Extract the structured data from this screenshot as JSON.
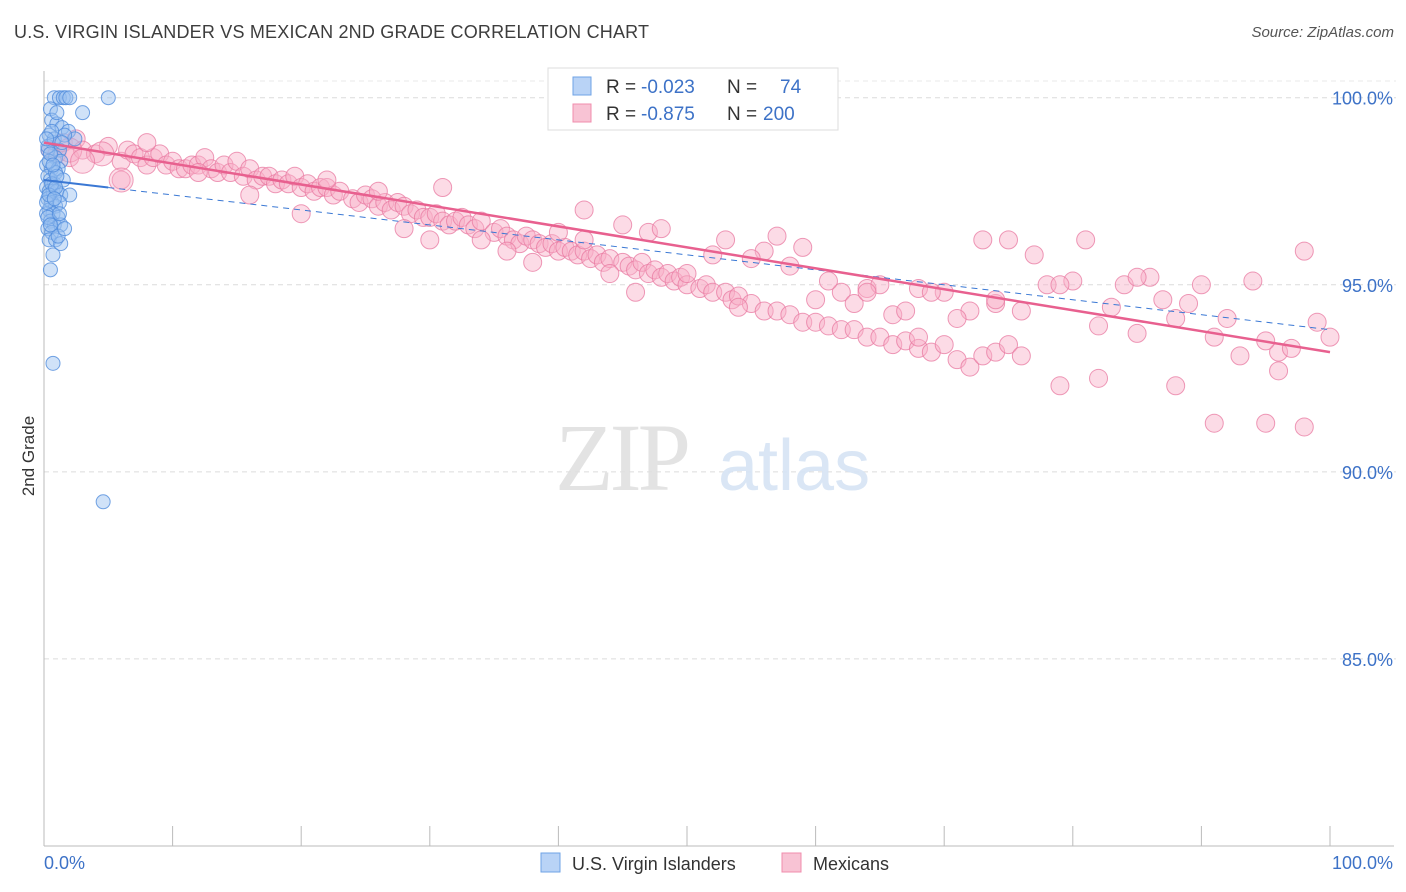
{
  "header": {
    "title": "U.S. VIRGIN ISLANDER VS MEXICAN 2ND GRADE CORRELATION CHART",
    "source": "Source: ZipAtlas.com"
  },
  "watermark": {
    "zip": "ZIP",
    "atlas": "atlas"
  },
  "colors": {
    "blue": "#6fa3e6",
    "blue_line": "#3a78d4",
    "pink": "#f08cad",
    "pink_line": "#e8608f",
    "axis_text": "#3d72c7"
  },
  "legend_box": {
    "rows": [
      {
        "r_label": "R = ",
        "r_value": "-0.023",
        "n_label": "N = ",
        "n_value": "74"
      },
      {
        "r_label": "R = ",
        "r_value": "-0.875",
        "n_label": "N = ",
        "n_value": "200"
      }
    ]
  },
  "chart_data": {
    "type": "scatter",
    "title": "U.S. VIRGIN ISLANDER VS MEXICAN 2ND GRADE CORRELATION CHART",
    "xlabel": "",
    "ylabel": "2nd Grade",
    "xlim": [
      0,
      100
    ],
    "ylim": [
      80,
      100.5
    ],
    "x_tick_labels": [
      "0.0%",
      "100.0%"
    ],
    "y_ticks": [
      85,
      90,
      95,
      100
    ],
    "y_tick_labels": [
      "85.0%",
      "90.0%",
      "95.0%",
      "100.0%"
    ],
    "grid": true,
    "legend_placement": "bottom-center",
    "series": [
      {
        "name": "U.S. Virgin Islanders",
        "color": "#6fa3e6",
        "r": -0.023,
        "n": 74,
        "trend": {
          "x": [
            0,
            5
          ],
          "y": [
            97.8,
            97.6
          ]
        },
        "trend_extended": {
          "x": [
            5,
            100
          ],
          "y": [
            97.6,
            93.8
          ]
        },
        "points": [
          [
            0.8,
            100
          ],
          [
            1.2,
            100
          ],
          [
            1.5,
            100
          ],
          [
            1.7,
            100
          ],
          [
            2,
            100
          ],
          [
            5,
            100
          ],
          [
            3,
            99.6
          ],
          [
            0.5,
            99.7
          ],
          [
            0.6,
            99.4
          ],
          [
            1,
            99.3
          ],
          [
            1.4,
            99.2
          ],
          [
            1.9,
            99.1
          ],
          [
            2.4,
            98.9
          ],
          [
            0.4,
            99
          ],
          [
            0.7,
            98.8
          ],
          [
            1.2,
            98.6
          ],
          [
            0.3,
            98.6
          ],
          [
            0.9,
            98.4
          ],
          [
            1.3,
            98.3
          ],
          [
            0.2,
            98.2
          ],
          [
            0.6,
            98.1
          ],
          [
            1.1,
            98.1
          ],
          [
            0.3,
            97.9
          ],
          [
            0.5,
            97.8
          ],
          [
            0.8,
            97.7
          ],
          [
            0.2,
            97.6
          ],
          [
            0.4,
            97.5
          ],
          [
            0.7,
            97.5
          ],
          [
            1,
            97.5
          ],
          [
            1.3,
            97.4
          ],
          [
            2,
            97.4
          ],
          [
            0.3,
            97.3
          ],
          [
            0.6,
            97.2
          ],
          [
            0.9,
            97.1
          ],
          [
            1.2,
            97.2
          ],
          [
            0.4,
            97
          ],
          [
            0.7,
            96.9
          ],
          [
            1.1,
            96.8
          ],
          [
            0.2,
            96.9
          ],
          [
            0.5,
            96.7
          ],
          [
            0.8,
            96.6
          ],
          [
            1.3,
            96.6
          ],
          [
            0.3,
            96.5
          ],
          [
            0.6,
            96.4
          ],
          [
            0.4,
            96.2
          ],
          [
            0.9,
            96.2
          ],
          [
            1.3,
            96.1
          ],
          [
            0.7,
            95.8
          ],
          [
            0.5,
            95.4
          ],
          [
            0.7,
            92.9
          ],
          [
            4.6,
            89.2
          ],
          [
            0.3,
            98.7
          ],
          [
            0.9,
            98
          ],
          [
            0.4,
            98.3
          ],
          [
            0.6,
            97.7
          ],
          [
            1.5,
            97.8
          ],
          [
            0.2,
            97.2
          ],
          [
            1.1,
            96.3
          ],
          [
            0.8,
            98.9
          ],
          [
            1.6,
            99
          ],
          [
            0.5,
            98.5
          ],
          [
            1,
            97.9
          ],
          [
            0.3,
            96.8
          ],
          [
            0.6,
            99.1
          ],
          [
            1.4,
            98.8
          ],
          [
            0.4,
            97.4
          ],
          [
            0.9,
            97.6
          ],
          [
            1.2,
            96.9
          ],
          [
            0.7,
            98.2
          ],
          [
            0.5,
            96.6
          ],
          [
            0.8,
            97.3
          ],
          [
            1.6,
            96.5
          ],
          [
            0.2,
            98.9
          ],
          [
            1,
            99.6
          ]
        ]
      },
      {
        "name": "Mexicans",
        "color": "#f08cad",
        "r": -0.875,
        "n": 200,
        "trend": {
          "x": [
            0,
            100
          ],
          "y": [
            98.8,
            93.2
          ]
        },
        "points": [
          [
            0.5,
            98.6
          ],
          [
            1,
            98.5
          ],
          [
            1.5,
            98.8
          ],
          [
            2,
            98.4
          ],
          [
            2.5,
            98.9
          ],
          [
            3,
            98.6
          ],
          [
            4,
            98.5
          ],
          [
            5,
            98.7
          ],
          [
            6,
            98.3
          ],
          [
            6.5,
            98.6
          ],
          [
            7,
            98.5
          ],
          [
            7.5,
            98.4
          ],
          [
            8,
            98.2
          ],
          [
            8.5,
            98.4
          ],
          [
            9,
            98.5
          ],
          [
            9.5,
            98.2
          ],
          [
            10,
            98.3
          ],
          [
            10.5,
            98.1
          ],
          [
            11,
            98.1
          ],
          [
            11.5,
            98.2
          ],
          [
            12,
            98.2
          ],
          [
            12.5,
            98.4
          ],
          [
            13,
            98.1
          ],
          [
            13.5,
            98
          ],
          [
            14,
            98.2
          ],
          [
            14.5,
            98
          ],
          [
            15,
            98.3
          ],
          [
            15.5,
            97.9
          ],
          [
            16,
            98.1
          ],
          [
            16.5,
            97.8
          ],
          [
            17,
            97.9
          ],
          [
            17.5,
            97.9
          ],
          [
            18,
            97.7
          ],
          [
            18.5,
            97.8
          ],
          [
            19,
            97.7
          ],
          [
            19.5,
            97.9
          ],
          [
            20,
            97.6
          ],
          [
            20.5,
            97.7
          ],
          [
            21,
            97.5
          ],
          [
            21.5,
            97.6
          ],
          [
            22,
            97.6
          ],
          [
            22.5,
            97.4
          ],
          [
            23,
            97.5
          ],
          [
            24,
            97.3
          ],
          [
            24.5,
            97.2
          ],
          [
            25,
            97.4
          ],
          [
            25.5,
            97.3
          ],
          [
            26,
            97.1
          ],
          [
            26.5,
            97.2
          ],
          [
            27,
            97
          ],
          [
            27.5,
            97.2
          ],
          [
            28,
            97.1
          ],
          [
            28.5,
            96.9
          ],
          [
            29,
            97
          ],
          [
            29.5,
            96.8
          ],
          [
            30,
            96.8
          ],
          [
            30.5,
            96.9
          ],
          [
            31,
            96.7
          ],
          [
            31.5,
            96.6
          ],
          [
            32,
            96.7
          ],
          [
            32.5,
            96.8
          ],
          [
            33,
            96.6
          ],
          [
            33.5,
            96.5
          ],
          [
            34,
            96.7
          ],
          [
            35,
            96.4
          ],
          [
            35.5,
            96.5
          ],
          [
            36,
            96.3
          ],
          [
            36.5,
            96.2
          ],
          [
            37,
            96.1
          ],
          [
            37.5,
            96.3
          ],
          [
            38,
            96.2
          ],
          [
            38.5,
            96.1
          ],
          [
            39,
            96
          ],
          [
            39.5,
            96.1
          ],
          [
            40,
            95.9
          ],
          [
            40.5,
            96
          ],
          [
            41,
            95.9
          ],
          [
            41.5,
            95.8
          ],
          [
            42,
            95.9
          ],
          [
            42.5,
            95.7
          ],
          [
            43,
            95.8
          ],
          [
            43.5,
            95.6
          ],
          [
            44,
            95.7
          ],
          [
            45,
            95.6
          ],
          [
            45.5,
            95.5
          ],
          [
            46,
            95.4
          ],
          [
            46.5,
            95.6
          ],
          [
            47,
            95.3
          ],
          [
            47.5,
            95.4
          ],
          [
            48,
            95.2
          ],
          [
            48.5,
            95.3
          ],
          [
            49,
            95.1
          ],
          [
            49.5,
            95.2
          ],
          [
            50,
            95
          ],
          [
            51,
            94.9
          ],
          [
            51.5,
            95
          ],
          [
            52,
            94.8
          ],
          [
            53,
            94.8
          ],
          [
            53.5,
            94.6
          ],
          [
            54,
            94.7
          ],
          [
            55,
            94.5
          ],
          [
            56,
            94.3
          ],
          [
            57,
            94.3
          ],
          [
            58,
            94.2
          ],
          [
            59,
            94
          ],
          [
            60,
            94
          ],
          [
            61,
            93.9
          ],
          [
            62,
            93.8
          ],
          [
            63,
            93.8
          ],
          [
            64,
            93.6
          ],
          [
            65,
            93.6
          ],
          [
            66,
            93.4
          ],
          [
            67,
            93.5
          ],
          [
            68,
            93.3
          ],
          [
            69,
            93.2
          ],
          [
            70,
            93.4
          ],
          [
            71,
            93
          ],
          [
            72,
            92.8
          ],
          [
            73,
            93.1
          ],
          [
            74,
            93.2
          ],
          [
            6,
            97.8
          ],
          [
            8,
            98.8
          ],
          [
            12,
            98
          ],
          [
            16,
            97.4
          ],
          [
            20,
            96.9
          ],
          [
            22,
            97.8
          ],
          [
            26,
            97.5
          ],
          [
            28,
            96.5
          ],
          [
            30,
            96.2
          ],
          [
            31,
            97.6
          ],
          [
            34,
            96.2
          ],
          [
            36,
            95.9
          ],
          [
            38,
            95.6
          ],
          [
            40,
            96.4
          ],
          [
            42,
            96.2
          ],
          [
            44,
            95.3
          ],
          [
            46,
            94.8
          ],
          [
            47,
            96.4
          ],
          [
            50,
            95.3
          ],
          [
            52,
            95.8
          ],
          [
            54,
            94.4
          ],
          [
            56,
            95.9
          ],
          [
            58,
            95.5
          ],
          [
            60,
            94.6
          ],
          [
            62,
            94.8
          ],
          [
            64,
            94.9
          ],
          [
            66,
            94.2
          ],
          [
            68,
            94.9
          ],
          [
            70,
            94.8
          ],
          [
            72,
            94.3
          ],
          [
            74,
            94.5
          ],
          [
            76,
            94.3
          ],
          [
            78,
            95
          ],
          [
            80,
            95.1
          ],
          [
            82,
            93.9
          ],
          [
            84,
            95
          ],
          [
            86,
            95.2
          ],
          [
            88,
            94.1
          ],
          [
            90,
            95
          ],
          [
            92,
            94.1
          ],
          [
            94,
            95.1
          ],
          [
            96,
            93.2
          ],
          [
            98,
            95.9
          ],
          [
            99,
            94
          ],
          [
            100,
            93.6
          ],
          [
            61,
            95.1
          ],
          [
            63,
            94.5
          ],
          [
            65,
            95
          ],
          [
            67,
            94.3
          ],
          [
            69,
            94.8
          ],
          [
            71,
            94.1
          ],
          [
            73,
            96.2
          ],
          [
            75,
            96.2
          ],
          [
            77,
            95.8
          ],
          [
            79,
            95
          ],
          [
            81,
            96.2
          ],
          [
            83,
            94.4
          ],
          [
            85,
            95.2
          ],
          [
            87,
            94.6
          ],
          [
            89,
            94.5
          ],
          [
            91,
            93.6
          ],
          [
            93,
            93.1
          ],
          [
            95,
            93.5
          ],
          [
            97,
            93.3
          ],
          [
            42,
            97
          ],
          [
            45,
            96.6
          ],
          [
            48,
            96.5
          ],
          [
            53,
            96.2
          ],
          [
            55,
            95.7
          ],
          [
            57,
            96.3
          ],
          [
            59,
            96
          ],
          [
            64,
            94.8
          ],
          [
            68,
            93.6
          ],
          [
            75,
            93.4
          ],
          [
            79,
            92.3
          ],
          [
            82,
            92.5
          ],
          [
            85,
            93.7
          ],
          [
            88,
            92.3
          ],
          [
            91,
            91.3
          ],
          [
            95,
            91.3
          ],
          [
            98,
            91.2
          ],
          [
            96,
            92.7
          ],
          [
            74,
            94.6
          ],
          [
            76,
            93.1
          ]
        ]
      }
    ]
  }
}
